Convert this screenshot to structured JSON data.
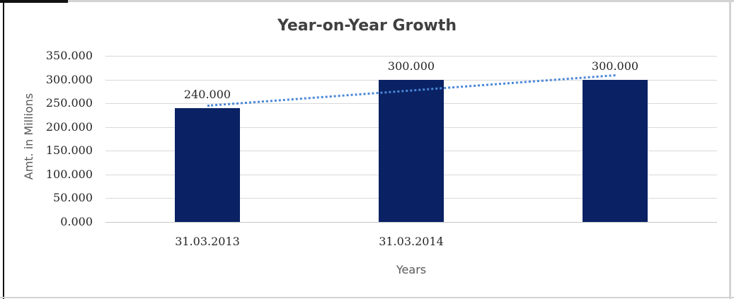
{
  "chart_data": {
    "type": "bar",
    "title": "Year-on-Year Growth",
    "xlabel": "Years",
    "ylabel": "Amt. in Millions",
    "categories": [
      "31.03.2013",
      "31.03.2014",
      ""
    ],
    "values": [
      240,
      300,
      300
    ],
    "value_labels": [
      "240.000",
      "300.000",
      "300.000"
    ],
    "ylim": [
      0,
      350
    ],
    "ytick_step": 50,
    "ytick_labels": [
      "0.000",
      "50.000",
      "100.000",
      "150.000",
      "200.000",
      "250.000",
      "300.000",
      "350.000"
    ],
    "grid": true,
    "legend": "none",
    "trendline": {
      "type": "linear",
      "style": "dotted",
      "start_value": 247,
      "end_value": 311
    }
  },
  "colors": {
    "bar": "#0a2264",
    "trendline": "#4a87d9",
    "gridline": "#d9d9d9",
    "axis_line": "#c6c6c6",
    "title_text": "#404040",
    "axis_title_text": "#595959",
    "tick_text": "#262626",
    "border_gray": "#d3d3d3",
    "border_black": "#111111",
    "background": "#ffffff"
  }
}
